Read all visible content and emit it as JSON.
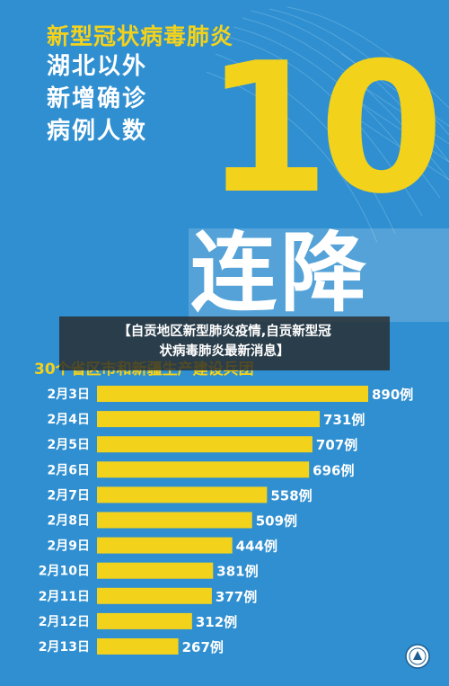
{
  "headline": {
    "topic": "新型冠状病毒肺炎",
    "lines": [
      "湖北以外",
      "新增确诊",
      "病例人数"
    ],
    "big_number": "10",
    "drop_text": "连降"
  },
  "overlay_title": {
    "line1": "【自贡地区新型肺炎疫情,自贡新型冠",
    "line2": "状病毒肺炎最新消息】"
  },
  "colors": {
    "background": "#2f8fd0",
    "accent": "#f3d21c",
    "text": "#ffffff"
  },
  "chart_data": {
    "type": "bar",
    "orientation": "horizontal",
    "title": "30个省区市和新疆生产建设兵团",
    "categories": [
      "2月3日",
      "2月4日",
      "2月5日",
      "2月6日",
      "2月7日",
      "2月8日",
      "2月9日",
      "2月10日",
      "2月11日",
      "2月12日",
      "2月13日"
    ],
    "values": [
      890,
      731,
      707,
      696,
      558,
      509,
      444,
      381,
      377,
      312,
      267
    ],
    "value_labels": [
      "890例",
      "731例",
      "707例",
      "696例",
      "558例",
      "509例",
      "444例",
      "381例",
      "377例",
      "312例",
      "267例"
    ],
    "xlim": [
      0,
      890
    ]
  }
}
